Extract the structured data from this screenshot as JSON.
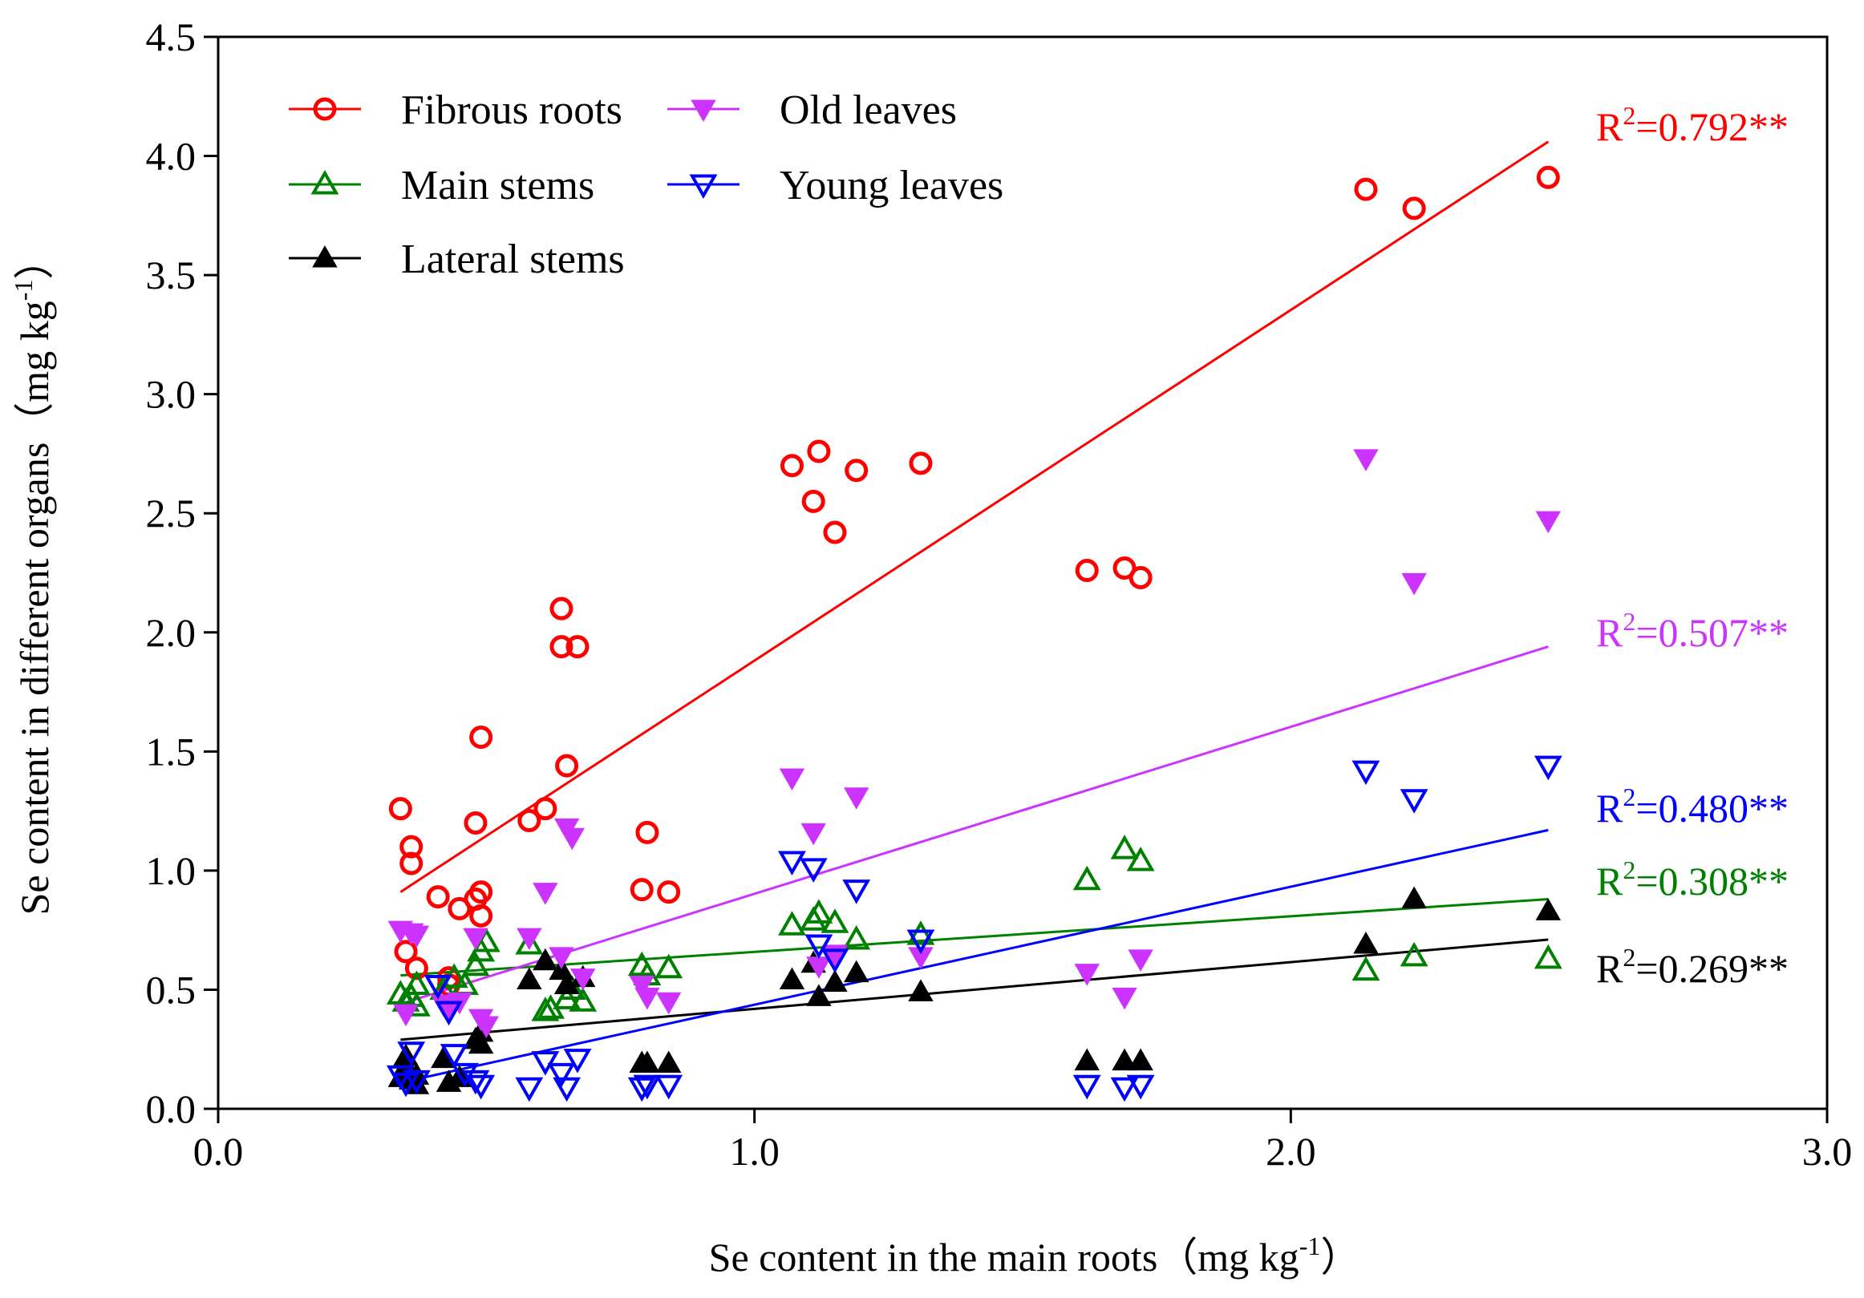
{
  "chart_data": {
    "type": "scatter",
    "xlabel": "Se content in the main roots",
    "xlabel_unit": "mg kg",
    "ylabel": "Se content in different organs",
    "ylabel_unit": "mg kg",
    "unit_exponent": "-1",
    "xlim": [
      0.0,
      3.0
    ],
    "ylim": [
      0.0,
      4.5
    ],
    "x_ticks": [
      "0.0",
      "1.0",
      "2.0",
      "3.0"
    ],
    "y_ticks": [
      "0.0",
      "0.5",
      "1.0",
      "1.5",
      "2.0",
      "2.5",
      "3.0",
      "3.5",
      "4.0",
      "4.5"
    ],
    "grid": false,
    "legend_position": "top-left",
    "series": [
      {
        "name": "Fibrous roots",
        "color": "#ff0000",
        "marker": "open-circle",
        "r2_text": "=0.792**",
        "fit": [
          [
            0.34,
            0.91
          ],
          [
            2.48,
            4.06
          ]
        ],
        "points": [
          [
            0.34,
            1.26
          ],
          [
            0.35,
            0.66
          ],
          [
            0.36,
            1.1
          ],
          [
            0.36,
            1.03
          ],
          [
            0.37,
            0.59
          ],
          [
            0.41,
            0.89
          ],
          [
            0.43,
            0.52
          ],
          [
            0.43,
            0.55
          ],
          [
            0.45,
            0.84
          ],
          [
            0.48,
            1.2
          ],
          [
            0.48,
            0.88
          ],
          [
            0.49,
            0.91
          ],
          [
            0.49,
            0.81
          ],
          [
            0.49,
            1.56
          ],
          [
            0.58,
            1.21
          ],
          [
            0.61,
            1.26
          ],
          [
            0.64,
            2.1
          ],
          [
            0.64,
            1.94
          ],
          [
            0.65,
            1.44
          ],
          [
            0.67,
            1.94
          ],
          [
            0.79,
            0.92
          ],
          [
            0.8,
            1.16
          ],
          [
            0.84,
            0.91
          ],
          [
            1.07,
            2.7
          ],
          [
            1.11,
            2.55
          ],
          [
            1.12,
            2.76
          ],
          [
            1.15,
            2.42
          ],
          [
            1.19,
            2.68
          ],
          [
            1.31,
            2.71
          ],
          [
            1.62,
            2.26
          ],
          [
            1.69,
            2.27
          ],
          [
            1.72,
            2.23
          ],
          [
            2.14,
            3.86
          ],
          [
            2.23,
            3.78
          ],
          [
            2.48,
            3.91
          ]
        ]
      },
      {
        "name": "Main stems",
        "color": "#008000",
        "marker": "open-triangle-up",
        "r2_text": "=0.308**",
        "fit": [
          [
            0.34,
            0.56
          ],
          [
            2.48,
            0.88
          ]
        ],
        "points": [
          [
            0.34,
            0.48
          ],
          [
            0.35,
            0.45
          ],
          [
            0.36,
            0.47
          ],
          [
            0.37,
            0.43
          ],
          [
            0.37,
            0.52
          ],
          [
            0.42,
            0.5
          ],
          [
            0.44,
            0.55
          ],
          [
            0.46,
            0.52
          ],
          [
            0.48,
            0.6
          ],
          [
            0.49,
            0.66
          ],
          [
            0.5,
            0.7
          ],
          [
            0.58,
            0.69
          ],
          [
            0.61,
            0.41
          ],
          [
            0.62,
            0.42
          ],
          [
            0.65,
            0.46
          ],
          [
            0.66,
            0.5
          ],
          [
            0.68,
            0.45
          ],
          [
            0.79,
            0.6
          ],
          [
            0.8,
            0.56
          ],
          [
            0.84,
            0.59
          ],
          [
            1.07,
            0.77
          ],
          [
            1.11,
            0.79
          ],
          [
            1.12,
            0.82
          ],
          [
            1.15,
            0.78
          ],
          [
            1.19,
            0.71
          ],
          [
            1.31,
            0.73
          ],
          [
            1.62,
            0.96
          ],
          [
            1.69,
            1.09
          ],
          [
            1.72,
            1.04
          ],
          [
            2.14,
            0.58
          ],
          [
            2.23,
            0.64
          ],
          [
            2.48,
            0.63
          ]
        ]
      },
      {
        "name": "Lateral stems",
        "color": "#000000",
        "marker": "filled-triangle-up",
        "r2_text": "=0.269**",
        "fit": [
          [
            0.34,
            0.29
          ],
          [
            2.48,
            0.71
          ]
        ],
        "points": [
          [
            0.34,
            0.13
          ],
          [
            0.35,
            0.18
          ],
          [
            0.35,
            0.22
          ],
          [
            0.36,
            0.12
          ],
          [
            0.37,
            0.14
          ],
          [
            0.37,
            0.1
          ],
          [
            0.42,
            0.21
          ],
          [
            0.43,
            0.11
          ],
          [
            0.45,
            0.13
          ],
          [
            0.48,
            0.29
          ],
          [
            0.49,
            0.32
          ],
          [
            0.49,
            0.27
          ],
          [
            0.58,
            0.54
          ],
          [
            0.61,
            0.62
          ],
          [
            0.64,
            0.58
          ],
          [
            0.65,
            0.52
          ],
          [
            0.68,
            0.55
          ],
          [
            0.79,
            0.19
          ],
          [
            0.8,
            0.19
          ],
          [
            0.84,
            0.19
          ],
          [
            1.07,
            0.54
          ],
          [
            1.11,
            0.61
          ],
          [
            1.12,
            0.47
          ],
          [
            1.15,
            0.53
          ],
          [
            1.19,
            0.57
          ],
          [
            1.31,
            0.49
          ],
          [
            1.62,
            0.2
          ],
          [
            1.69,
            0.2
          ],
          [
            1.72,
            0.2
          ],
          [
            2.14,
            0.69
          ],
          [
            2.23,
            0.88
          ],
          [
            2.48,
            0.83
          ]
        ]
      },
      {
        "name": "Old leaves",
        "color": "#cc33ff",
        "marker": "filled-triangle-down",
        "r2_text": "=0.507**",
        "fit": [
          [
            0.34,
            0.44
          ],
          [
            2.48,
            1.94
          ]
        ],
        "points": [
          [
            0.34,
            0.75
          ],
          [
            0.35,
            0.4
          ],
          [
            0.36,
            0.74
          ],
          [
            0.37,
            0.73
          ],
          [
            0.42,
            0.44
          ],
          [
            0.43,
            0.42
          ],
          [
            0.45,
            0.45
          ],
          [
            0.48,
            0.72
          ],
          [
            0.49,
            0.38
          ],
          [
            0.5,
            0.35
          ],
          [
            0.58,
            0.72
          ],
          [
            0.61,
            0.91
          ],
          [
            0.64,
            0.64
          ],
          [
            0.65,
            1.18
          ],
          [
            0.66,
            1.14
          ],
          [
            0.68,
            0.55
          ],
          [
            0.79,
            0.52
          ],
          [
            0.8,
            0.47
          ],
          [
            0.84,
            0.45
          ],
          [
            1.07,
            1.39
          ],
          [
            1.11,
            1.16
          ],
          [
            1.12,
            0.6
          ],
          [
            1.15,
            0.65
          ],
          [
            1.19,
            1.31
          ],
          [
            1.31,
            0.64
          ],
          [
            1.62,
            0.57
          ],
          [
            1.69,
            0.47
          ],
          [
            1.72,
            0.63
          ],
          [
            2.14,
            2.73
          ],
          [
            2.23,
            2.21
          ],
          [
            2.48,
            2.47
          ]
        ]
      },
      {
        "name": "Young leaves",
        "color": "#0000ff",
        "marker": "open-triangle-down",
        "r2_text": "=0.480**",
        "fit": [
          [
            0.34,
            0.11
          ],
          [
            2.48,
            1.17
          ]
        ],
        "points": [
          [
            0.34,
            0.14
          ],
          [
            0.35,
            0.11
          ],
          [
            0.36,
            0.24
          ],
          [
            0.37,
            0.12
          ],
          [
            0.41,
            0.52
          ],
          [
            0.43,
            0.41
          ],
          [
            0.44,
            0.23
          ],
          [
            0.46,
            0.15
          ],
          [
            0.48,
            0.12
          ],
          [
            0.49,
            0.1
          ],
          [
            0.58,
            0.09
          ],
          [
            0.61,
            0.2
          ],
          [
            0.64,
            0.15
          ],
          [
            0.65,
            0.09
          ],
          [
            0.67,
            0.21
          ],
          [
            0.79,
            0.09
          ],
          [
            0.8,
            0.1
          ],
          [
            0.84,
            0.1
          ],
          [
            1.07,
            1.04
          ],
          [
            1.11,
            1.01
          ],
          [
            1.12,
            0.69
          ],
          [
            1.15,
            0.63
          ],
          [
            1.19,
            0.92
          ],
          [
            1.31,
            0.71
          ],
          [
            1.62,
            0.1
          ],
          [
            1.69,
            0.09
          ],
          [
            1.72,
            0.1
          ],
          [
            2.14,
            1.42
          ],
          [
            2.23,
            1.3
          ],
          [
            2.48,
            1.44
          ]
        ]
      }
    ]
  }
}
